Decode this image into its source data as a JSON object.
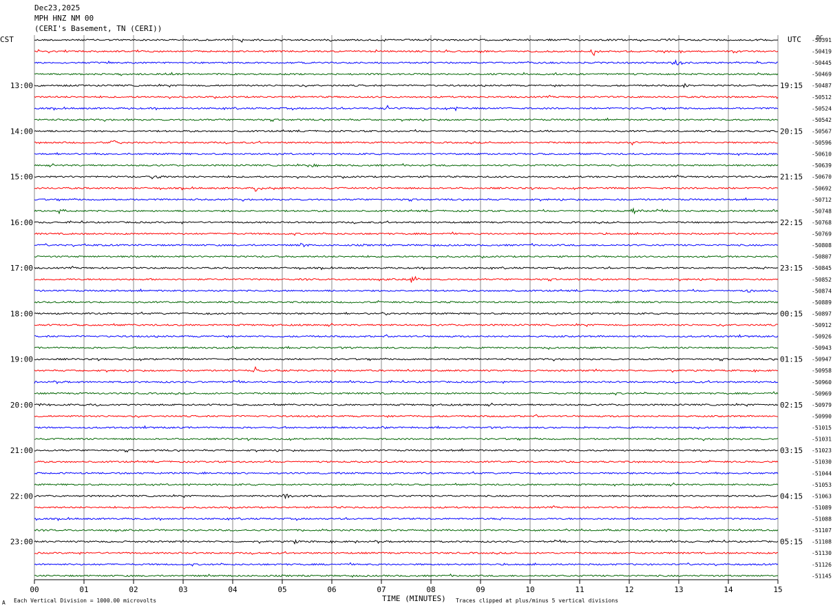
{
  "header": {
    "date": "Dec23,2025",
    "station": "MPH HNZ NM 00",
    "location": "(CERI's Basement, TN (CERI))"
  },
  "left_zone": "CST",
  "right_zone": "UTC",
  "dc_label": "DC",
  "footer": {
    "scale": "Each Vertical Division = 1000.00 microvolts",
    "clip": "Traces clipped at plus/minus 5 vertical divisions",
    "mark": "A"
  },
  "chart_data": {
    "type": "line",
    "title": "",
    "xlabel": "TIME (MINUTES)",
    "ylabel": "",
    "xlim": [
      0,
      15
    ],
    "x_ticks": [
      "00",
      "01",
      "02",
      "03",
      "04",
      "05",
      "06",
      "07",
      "08",
      "09",
      "10",
      "11",
      "12",
      "13",
      "14",
      "15"
    ],
    "grid": true,
    "trace_colors": [
      "#000000",
      "#ff0000",
      "#0000ff",
      "#006400"
    ],
    "left_hour_labels": [
      "13:00",
      "14:00",
      "15:00",
      "16:00",
      "17:00",
      "18:00",
      "19:00",
      "20:00",
      "21:00",
      "22:00",
      "23:00"
    ],
    "right_hour_labels": [
      "19:15",
      "20:15",
      "21:15",
      "22:15",
      "23:15",
      "00:15",
      "01:15",
      "02:15",
      "03:15",
      "04:15",
      "05:15"
    ],
    "dc_offsets": [
      "-50391",
      "-50419",
      "-50445",
      "-50469",
      "-50487",
      "-50512",
      "-50524",
      "-50542",
      "-50567",
      "-50596",
      "-50610",
      "-50639",
      "-50670",
      "-50692",
      "-50712",
      "-50748",
      "-50768",
      "-50769",
      "-50808",
      "-50807",
      "-50845",
      "-50852",
      "-50874",
      "-50889",
      "-50897",
      "-50912",
      "-50926",
      "-50943",
      "-50947",
      "-50958",
      "-50960",
      "-50969",
      "-50979",
      "-50990",
      "-51015",
      "-51031",
      "-51023",
      "-51030",
      "-51044",
      "-51053",
      "-51063",
      "-51089",
      "-51088",
      "-51107",
      "-51108",
      "-51130",
      "-51126",
      "-51145"
    ],
    "events": [
      {
        "trace": 0,
        "minute": 4.15,
        "amp": 4
      },
      {
        "trace": 1,
        "minute": 11.25,
        "amp": 9
      },
      {
        "trace": 2,
        "minute": 12.9,
        "amp": 6
      },
      {
        "trace": 4,
        "minute": 13.1,
        "amp": 3
      },
      {
        "trace": 6,
        "minute": 7.1,
        "amp": 5
      },
      {
        "trace": 6,
        "minute": 8.5,
        "amp": 3
      },
      {
        "trace": 9,
        "minute": 1.6,
        "amp": 4
      },
      {
        "trace": 9,
        "minute": 12.05,
        "amp": 4
      },
      {
        "trace": 11,
        "minute": 5.6,
        "amp": 3
      },
      {
        "trace": 12,
        "minute": 2.4,
        "amp": 7
      },
      {
        "trace": 13,
        "minute": 4.45,
        "amp": 8
      },
      {
        "trace": 15,
        "minute": 0.5,
        "amp": 4
      },
      {
        "trace": 15,
        "minute": 12.05,
        "amp": 6
      },
      {
        "trace": 18,
        "minute": 5.4,
        "amp": 4
      },
      {
        "trace": 18,
        "minute": 1.0,
        "amp": 3
      },
      {
        "trace": 21,
        "minute": 7.6,
        "amp": 7
      },
      {
        "trace": 22,
        "minute": 14.4,
        "amp": 3
      },
      {
        "trace": 24,
        "minute": 7.0,
        "amp": 4
      },
      {
        "trace": 29,
        "minute": 4.45,
        "amp": 5
      },
      {
        "trace": 32,
        "minute": 0.1,
        "amp": 4
      },
      {
        "trace": 32,
        "minute": 1.15,
        "amp": 5
      },
      {
        "trace": 33,
        "minute": 7.5,
        "amp": 3
      },
      {
        "trace": 40,
        "minute": 5.05,
        "amp": 5
      },
      {
        "trace": 41,
        "minute": 6.15,
        "amp": 3
      },
      {
        "trace": 44,
        "minute": 5.25,
        "amp": 3
      }
    ]
  }
}
